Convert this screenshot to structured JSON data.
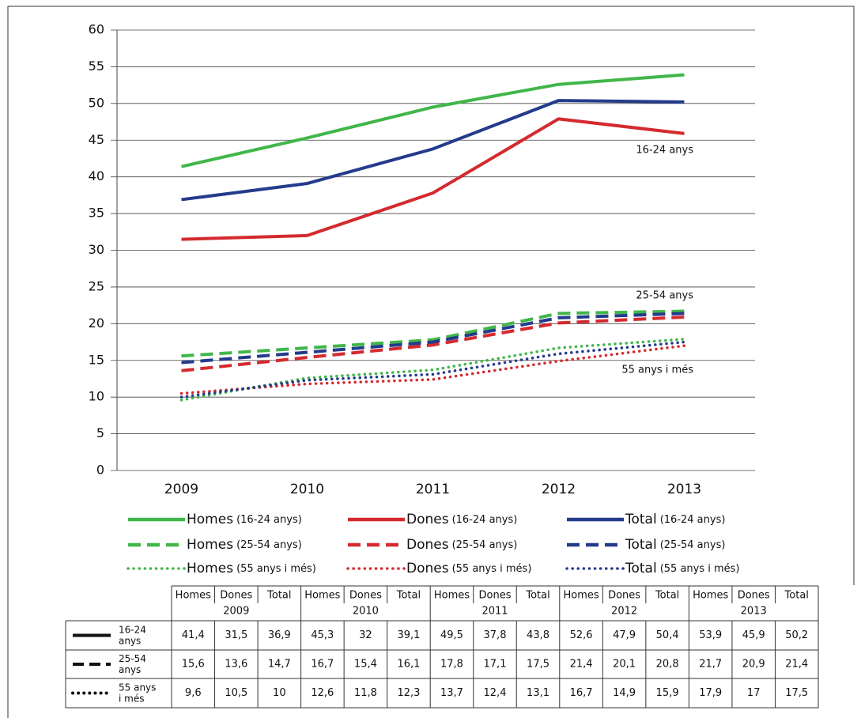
{
  "chart_data": {
    "type": "line",
    "categories": [
      "2009",
      "2010",
      "2011",
      "2012",
      "2013"
    ],
    "ylim": [
      0,
      60
    ],
    "yticks": [
      0,
      5,
      10,
      15,
      20,
      25,
      30,
      35,
      40,
      45,
      50,
      55,
      60
    ],
    "grid": true,
    "annotations": [
      "16-24 anys",
      "25-54 anys",
      "55 anys i més"
    ],
    "series": [
      {
        "name": "Homes",
        "group": "(16-24 anys)",
        "color": "#41b649",
        "style": "solid",
        "values": [
          41.4,
          45.3,
          49.5,
          52.6,
          53.9
        ],
        "value_labels": [
          "41,4",
          "45,3",
          "49,5",
          "52,6",
          "53,9"
        ]
      },
      {
        "name": "Dones",
        "group": "(16-24 anys)",
        "color": "#d42a2f",
        "style": "solid",
        "values": [
          31.5,
          32,
          37.8,
          47.9,
          45.9
        ],
        "value_labels": [
          "31,5",
          "32",
          "37,8",
          "47,9",
          "45,9"
        ]
      },
      {
        "name": "Total",
        "group": "(16-24 anys)",
        "color": "#243b8c",
        "style": "solid",
        "values": [
          36.9,
          39.1,
          43.8,
          50.4,
          50.2
        ],
        "value_labels": [
          "36,9",
          "39,1",
          "43,8",
          "50,4",
          "50,2"
        ]
      },
      {
        "name": "Homes",
        "group": "(25-54 anys)",
        "color": "#41b649",
        "style": "dashed",
        "values": [
          15.6,
          16.7,
          17.8,
          21.4,
          21.7
        ],
        "value_labels": [
          "15,6",
          "16,7",
          "17,8",
          "21,4",
          "21,7"
        ]
      },
      {
        "name": "Dones",
        "group": "(25-54 anys)",
        "color": "#d42a2f",
        "style": "dashed",
        "values": [
          13.6,
          15.4,
          17.1,
          20.1,
          20.9
        ],
        "value_labels": [
          "13,6",
          "15,4",
          "17,1",
          "20,1",
          "20,9"
        ]
      },
      {
        "name": "Total",
        "group": "(25-54 anys)",
        "color": "#243b8c",
        "style": "dashed",
        "values": [
          14.7,
          16.1,
          17.5,
          20.8,
          21.4
        ],
        "value_labels": [
          "14,7",
          "16,1",
          "17,5",
          "20,8",
          "21,4"
        ]
      },
      {
        "name": "Homes",
        "group": "(55 anys i més)",
        "color": "#41b649",
        "style": "dotted",
        "values": [
          9.6,
          12.6,
          13.7,
          16.7,
          17.9
        ],
        "value_labels": [
          "9,6",
          "12,6",
          "13,7",
          "16,7",
          "17,9"
        ]
      },
      {
        "name": "Dones",
        "group": "(55 anys i més)",
        "color": "#d42a2f",
        "style": "dotted",
        "values": [
          10.5,
          11.8,
          12.4,
          14.9,
          17
        ],
        "value_labels": [
          "10,5",
          "11,8",
          "12,4",
          "14,9",
          "17"
        ]
      },
      {
        "name": "Total",
        "group": "(55 anys i més)",
        "color": "#243b8c",
        "style": "dotted",
        "values": [
          10,
          12.3,
          13.1,
          15.9,
          17.5
        ],
        "value_labels": [
          "10",
          "12,3",
          "13,1",
          "15,9",
          "17,5"
        ]
      }
    ]
  }
}
